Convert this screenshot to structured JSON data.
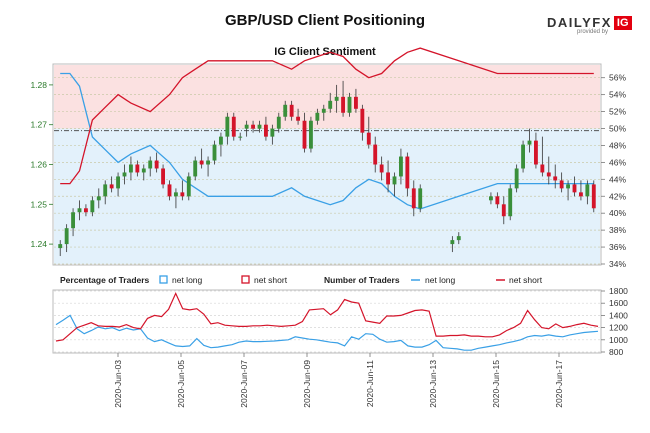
{
  "header": {
    "title": "GBP/USD Client Positioning",
    "subtitle": "IG Client Sentiment",
    "brand_word": "DAILYFX",
    "brand_ig": "IG",
    "brand_by": "provided by"
  },
  "legend": {
    "pct_label": "Percentage of Traders",
    "num_label": "Number of Traders",
    "net_long": "net long",
    "net_short": "net short"
  },
  "colors": {
    "long": "#3aa0e6",
    "short": "#d4142a",
    "up": "#3a8f3a",
    "down": "#d4142a"
  },
  "chart_data": [
    {
      "type": "candlestick",
      "y_left": {
        "range": [
          1.235,
          1.285
        ],
        "ticks": [
          1.24,
          1.25,
          1.26,
          1.27,
          1.28
        ]
      },
      "y_right": {
        "range": [
          34,
          57.5
        ],
        "ticks": [
          34,
          36,
          38,
          40,
          42,
          44,
          46,
          48,
          50,
          52,
          54,
          56
        ],
        "unit": "%"
      },
      "reference_price": 1.2685,
      "candles": [
        [
          1.239,
          1.241,
          1.237,
          1.24
        ],
        [
          1.24,
          1.245,
          1.238,
          1.244
        ],
        [
          1.244,
          1.249,
          1.242,
          1.248
        ],
        [
          1.248,
          1.251,
          1.246,
          1.249
        ],
        [
          1.249,
          1.25,
          1.247,
          1.248
        ],
        [
          1.248,
          1.252,
          1.247,
          1.251
        ],
        [
          1.251,
          1.254,
          1.249,
          1.252
        ],
        [
          1.252,
          1.256,
          1.25,
          1.255
        ],
        [
          1.255,
          1.257,
          1.253,
          1.254
        ],
        [
          1.254,
          1.258,
          1.252,
          1.257
        ],
        [
          1.257,
          1.26,
          1.255,
          1.258
        ],
        [
          1.258,
          1.262,
          1.256,
          1.26
        ],
        [
          1.26,
          1.261,
          1.257,
          1.258
        ],
        [
          1.258,
          1.26,
          1.256,
          1.259
        ],
        [
          1.259,
          1.262,
          1.257,
          1.261
        ],
        [
          1.261,
          1.263,
          1.258,
          1.259
        ],
        [
          1.259,
          1.26,
          1.254,
          1.255
        ],
        [
          1.255,
          1.256,
          1.251,
          1.252
        ],
        [
          1.252,
          1.254,
          1.249,
          1.253
        ],
        [
          1.253,
          1.256,
          1.251,
          1.252
        ],
        [
          1.252,
          1.258,
          1.251,
          1.257
        ],
        [
          1.257,
          1.262,
          1.256,
          1.261
        ],
        [
          1.261,
          1.264,
          1.259,
          1.26
        ],
        [
          1.26,
          1.262,
          1.257,
          1.261
        ],
        [
          1.261,
          1.266,
          1.26,
          1.265
        ],
        [
          1.265,
          1.268,
          1.262,
          1.267
        ],
        [
          1.267,
          1.273,
          1.265,
          1.272
        ],
        [
          1.272,
          1.273,
          1.266,
          1.267
        ],
        [
          1.267,
          1.268,
          1.266,
          1.267
        ],
        [
          1.269,
          1.271,
          1.267,
          1.27
        ],
        [
          1.27,
          1.271,
          1.268,
          1.269
        ],
        [
          1.269,
          1.271,
          1.268,
          1.27
        ],
        [
          1.27,
          1.272,
          1.266,
          1.267
        ],
        [
          1.267,
          1.27,
          1.265,
          1.269
        ],
        [
          1.269,
          1.273,
          1.268,
          1.272
        ],
        [
          1.272,
          1.276,
          1.271,
          1.275
        ],
        [
          1.275,
          1.276,
          1.271,
          1.272
        ],
        [
          1.272,
          1.274,
          1.27,
          1.271
        ],
        [
          1.271,
          1.273,
          1.263,
          1.264
        ],
        [
          1.264,
          1.272,
          1.263,
          1.271
        ],
        [
          1.271,
          1.274,
          1.27,
          1.273
        ],
        [
          1.273,
          1.275,
          1.271,
          1.274
        ],
        [
          1.274,
          1.278,
          1.273,
          1.276
        ],
        [
          1.276,
          1.28,
          1.273,
          1.277
        ],
        [
          1.277,
          1.281,
          1.272,
          1.273
        ],
        [
          1.273,
          1.278,
          1.272,
          1.277
        ],
        [
          1.277,
          1.279,
          1.273,
          1.274
        ],
        [
          1.274,
          1.275,
          1.266,
          1.268
        ],
        [
          1.268,
          1.272,
          1.264,
          1.265
        ],
        [
          1.265,
          1.267,
          1.258,
          1.26
        ],
        [
          1.26,
          1.262,
          1.256,
          1.258
        ],
        [
          1.258,
          1.261,
          1.253,
          1.255
        ],
        [
          1.255,
          1.258,
          1.252,
          1.257
        ],
        [
          1.257,
          1.264,
          1.255,
          1.262
        ],
        [
          1.262,
          1.263,
          1.252,
          1.254
        ],
        [
          1.254,
          1.256,
          1.247,
          1.249
        ],
        [
          1.249,
          1.255,
          1.248,
          1.254
        ],
        [
          1.24,
          1.242,
          1.238,
          1.241
        ],
        [
          1.241,
          1.243,
          1.24,
          1.242
        ],
        [
          1.251,
          1.253,
          1.25,
          1.252
        ],
        [
          1.252,
          1.253,
          1.249,
          1.25
        ],
        [
          1.25,
          1.252,
          1.245,
          1.247
        ],
        [
          1.247,
          1.255,
          1.246,
          1.254
        ],
        [
          1.254,
          1.26,
          1.253,
          1.259
        ],
        [
          1.259,
          1.266,
          1.258,
          1.265
        ],
        [
          1.265,
          1.269,
          1.263,
          1.266
        ],
        [
          1.266,
          1.268,
          1.259,
          1.26
        ],
        [
          1.26,
          1.267,
          1.257,
          1.258
        ],
        [
          1.258,
          1.262,
          1.255,
          1.257
        ],
        [
          1.257,
          1.26,
          1.254,
          1.256
        ],
        [
          1.256,
          1.258,
          1.253,
          1.254
        ],
        [
          1.254,
          1.256,
          1.251,
          1.255
        ],
        [
          1.255,
          1.257,
          1.252,
          1.253
        ],
        [
          1.253,
          1.256,
          1.251,
          1.252
        ],
        [
          1.252,
          1.256,
          1.25,
          1.255
        ],
        [
          1.255,
          1.256,
          1.248,
          1.249
        ]
      ],
      "candle_gaps_after": [
        56,
        58
      ],
      "net_long_pct": [
        [
          0,
          56.5
        ],
        [
          1.5,
          56.5
        ],
        [
          3,
          55
        ],
        [
          5,
          49
        ],
        [
          7,
          47.5
        ],
        [
          9,
          46
        ],
        [
          11,
          47
        ],
        [
          14,
          48
        ],
        [
          17,
          46
        ],
        [
          19,
          44
        ],
        [
          21,
          43
        ],
        [
          23,
          42
        ],
        [
          25,
          42
        ],
        [
          27,
          42
        ],
        [
          29,
          42
        ],
        [
          31,
          42
        ],
        [
          33,
          42
        ],
        [
          36,
          43
        ],
        [
          38,
          42
        ],
        [
          40,
          41.5
        ],
        [
          42,
          41
        ],
        [
          44,
          41.5
        ],
        [
          46,
          43
        ],
        [
          48,
          44
        ],
        [
          50,
          43.5
        ],
        [
          52,
          42
        ],
        [
          54,
          41
        ],
        [
          56,
          40.5
        ],
        [
          58,
          42
        ],
        [
          60,
          43.5
        ],
        [
          62,
          43.5
        ],
        [
          64,
          43.5
        ],
        [
          66,
          43.5
        ],
        [
          68,
          43.5
        ],
        [
          70,
          43.5
        ],
        [
          72,
          43.5
        ],
        [
          75,
          43.5
        ]
      ],
      "net_short_pct": [
        [
          0,
          43.5
        ],
        [
          1.5,
          43.5
        ],
        [
          3,
          45
        ],
        [
          5,
          51
        ],
        [
          7,
          52.5
        ],
        [
          9,
          54
        ],
        [
          11,
          53
        ],
        [
          14,
          52
        ],
        [
          17,
          54
        ],
        [
          19,
          56
        ],
        [
          21,
          57
        ],
        [
          23,
          58
        ],
        [
          25,
          58
        ],
        [
          27,
          58
        ],
        [
          29,
          58
        ],
        [
          31,
          58
        ],
        [
          33,
          58
        ],
        [
          36,
          57
        ],
        [
          38,
          58
        ],
        [
          40,
          58.5
        ],
        [
          42,
          59
        ],
        [
          44,
          58.5
        ],
        [
          46,
          57
        ],
        [
          48,
          56
        ],
        [
          50,
          56.5
        ],
        [
          52,
          58
        ],
        [
          54,
          59
        ],
        [
          56,
          59.5
        ],
        [
          58,
          58
        ],
        [
          60,
          56.5
        ],
        [
          62,
          56.5
        ],
        [
          64,
          56.5
        ],
        [
          66,
          56.5
        ],
        [
          68,
          56.5
        ],
        [
          70,
          56.5
        ],
        [
          72,
          56.5
        ],
        [
          75,
          56.5
        ]
      ]
    },
    {
      "type": "line",
      "y_right": {
        "range": [
          800,
          1800
        ],
        "ticks": [
          800,
          1000,
          1200,
          1400,
          1600,
          1800
        ]
      },
      "x_ticks": [
        "2020-Jun-03",
        "2020-Jun-05",
        "2020-Jun-07",
        "2020-Jun-09",
        "2020-Jun-11",
        "2020-Jun-13",
        "2020-Jun-15",
        "2020-Jun-17"
      ],
      "series": [
        {
          "name": "net long",
          "values": [
            1250,
            1320,
            1400,
            1180,
            1100,
            1150,
            1210,
            1180,
            1200,
            1150,
            1190,
            1160,
            1180,
            1030,
            970,
            1000,
            950,
            900,
            890,
            900,
            1020,
            910,
            870,
            880,
            900,
            920,
            960,
            980,
            970,
            970,
            975,
            980,
            990,
            1000,
            1050,
            1030,
            1010,
            1000,
            980,
            960,
            950,
            900,
            1050,
            1010,
            1100,
            1090,
            1010,
            960,
            970,
            990,
            900,
            880,
            880,
            920,
            990,
            870,
            860,
            850,
            830,
            830,
            860,
            880,
            900,
            920,
            950,
            970,
            1000,
            1050,
            1070,
            1060,
            1080,
            1060,
            1050,
            1080,
            1100,
            1120,
            1130,
            1140
          ]
        },
        {
          "name": "net short",
          "values": [
            980,
            1000,
            1100,
            1200,
            1240,
            1280,
            1230,
            1220,
            1220,
            1210,
            1250,
            1200,
            1180,
            1350,
            1400,
            1380,
            1500,
            1760,
            1510,
            1490,
            1510,
            1420,
            1260,
            1280,
            1240,
            1230,
            1220,
            1220,
            1230,
            1230,
            1240,
            1230,
            1220,
            1230,
            1240,
            1300,
            1490,
            1500,
            1510,
            1410,
            1490,
            1660,
            1620,
            1600,
            1310,
            1290,
            1270,
            1390,
            1390,
            1400,
            1440,
            1480,
            1490,
            1470,
            1060,
            1060,
            1070,
            1070,
            1080,
            1060,
            1060,
            1050,
            1050,
            1080,
            1150,
            1200,
            1270,
            1480,
            1330,
            1200,
            1180,
            1260,
            1200,
            1220,
            1250,
            1270,
            1240,
            1220
          ]
        }
      ]
    }
  ]
}
